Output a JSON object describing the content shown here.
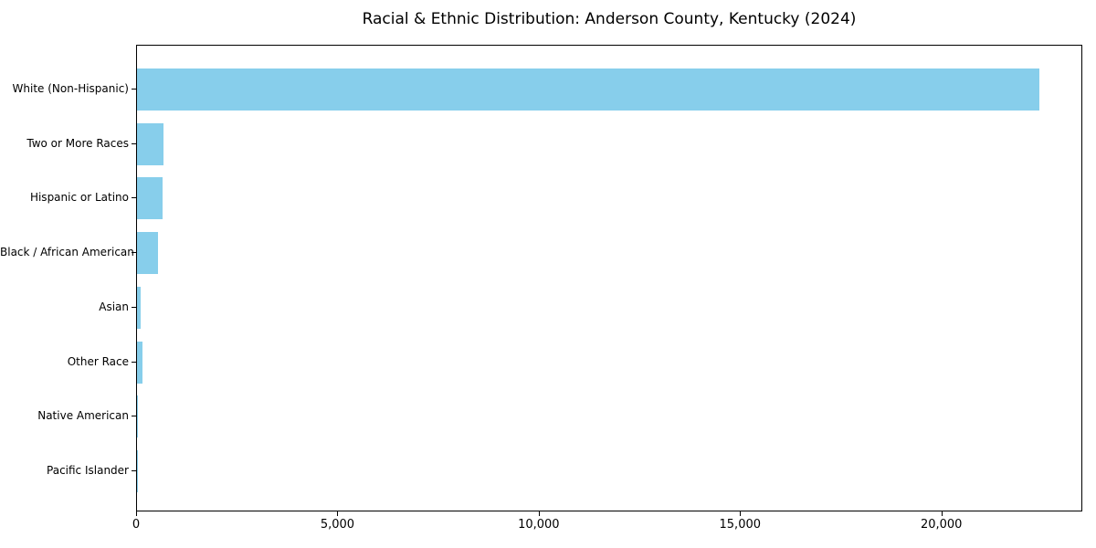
{
  "chart_data": {
    "type": "bar",
    "orientation": "horizontal",
    "title": "Racial & Ethnic Distribution: Anderson County, Kentucky (2024)",
    "categories": [
      "White (Non-Hispanic)",
      "Two or More Races",
      "Hispanic or Latino",
      "Black / African American",
      "Asian",
      "Other Race",
      "Native American",
      "Pacific Islander"
    ],
    "values": [
      22400,
      665,
      640,
      515,
      100,
      135,
      20,
      10
    ],
    "xlabel": "",
    "ylabel": "",
    "xlim": [
      0,
      23500
    ],
    "xticks": [
      0,
      5000,
      10000,
      15000,
      20000
    ],
    "xtick_labels": [
      "0",
      "5,000",
      "10,000",
      "15,000",
      "20,000"
    ],
    "bar_color": "#87CEEB",
    "spine_color": "#000000",
    "text_color": "#000000",
    "grid": false,
    "legend_position": "none"
  }
}
